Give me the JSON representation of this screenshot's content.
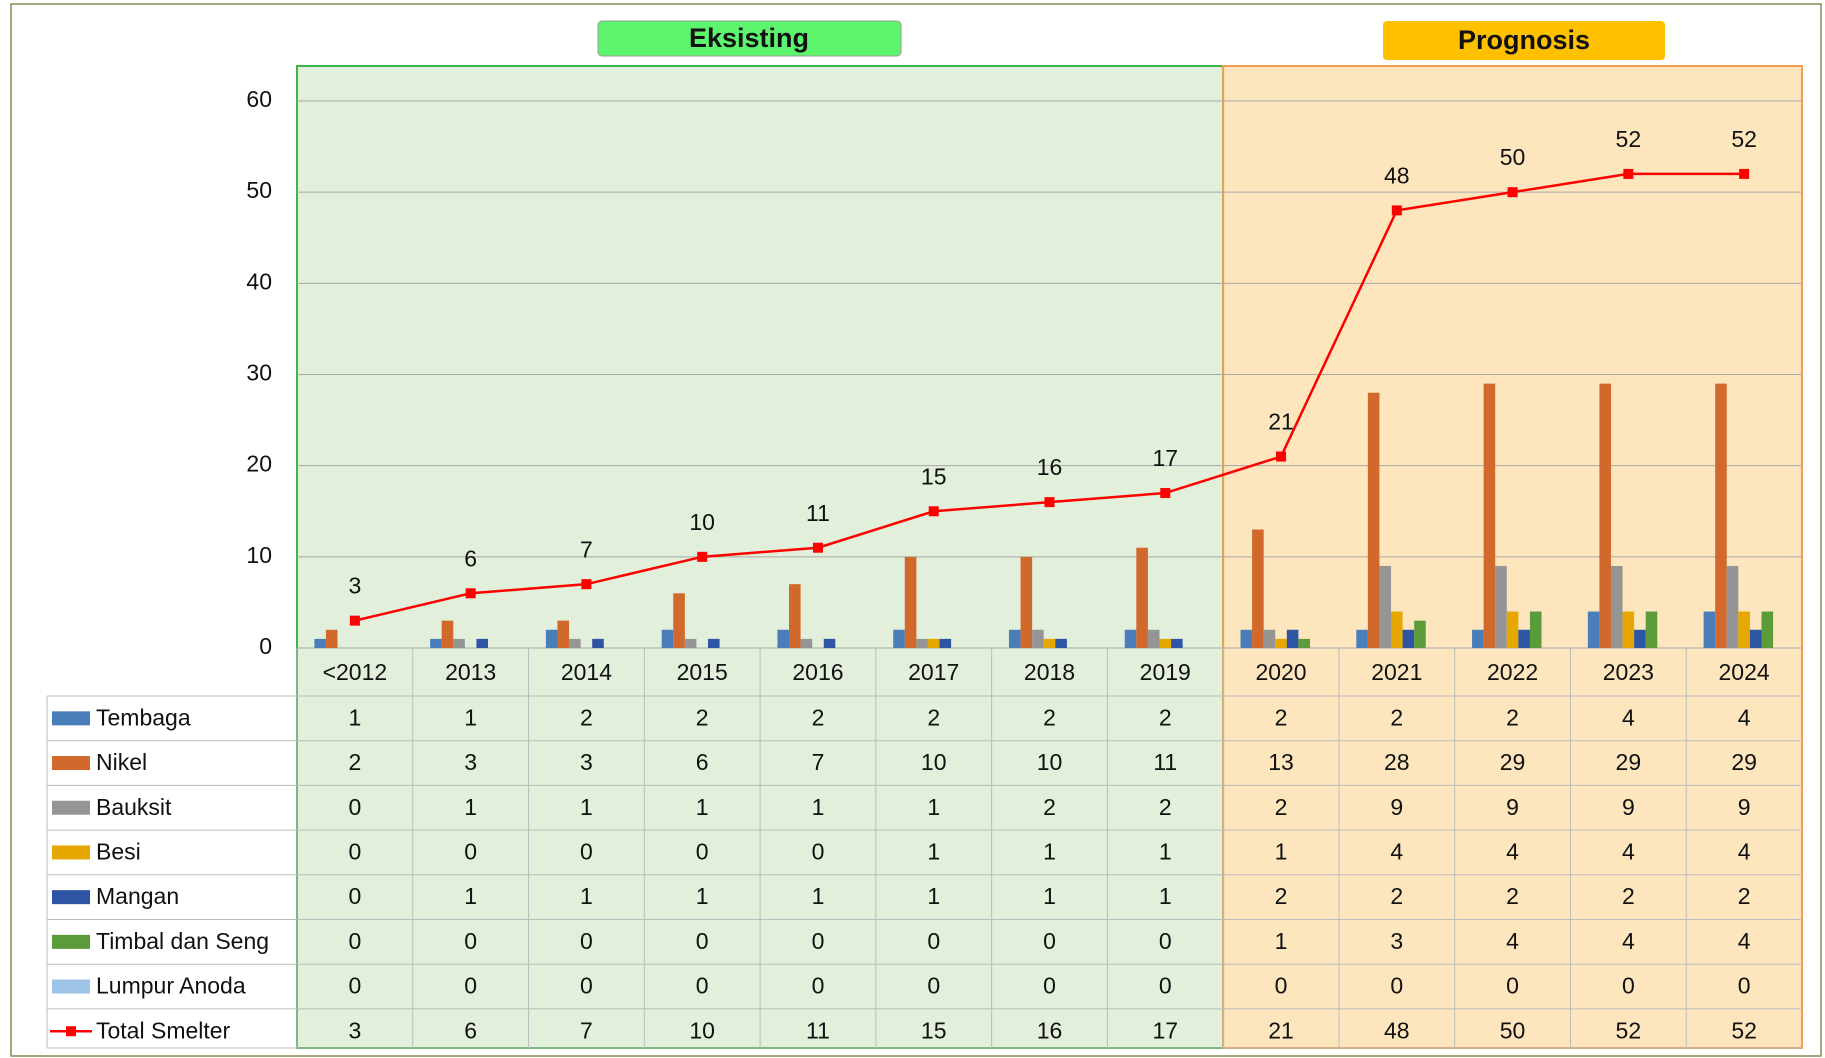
{
  "chart_data": {
    "type": "bar",
    "annotations": [
      "Eksisting",
      "Prognosis"
    ],
    "categories": [
      "<2012",
      "2013",
      "2014",
      "2015",
      "2016",
      "2017",
      "2018",
      "2019",
      "2020",
      "2021",
      "2022",
      "2023",
      "2024"
    ],
    "series": [
      {
        "name": "Tembaga",
        "color": "#4a7ebb",
        "values": [
          1,
          1,
          2,
          2,
          2,
          2,
          2,
          2,
          2,
          2,
          2,
          4,
          4
        ]
      },
      {
        "name": "Nikel",
        "color": "#d0692b",
        "values": [
          2,
          3,
          3,
          6,
          7,
          10,
          10,
          11,
          13,
          28,
          29,
          29,
          29
        ]
      },
      {
        "name": "Bauksit",
        "color": "#959595",
        "values": [
          0,
          1,
          1,
          1,
          1,
          1,
          2,
          2,
          2,
          9,
          9,
          9,
          9
        ]
      },
      {
        "name": "Besi",
        "color": "#e6a800",
        "values": [
          0,
          0,
          0,
          0,
          0,
          1,
          1,
          1,
          1,
          4,
          4,
          4,
          4
        ]
      },
      {
        "name": "Mangan",
        "color": "#2e54a4",
        "values": [
          0,
          1,
          1,
          1,
          1,
          1,
          1,
          1,
          2,
          2,
          2,
          2,
          2
        ]
      },
      {
        "name": "Timbal dan Seng",
        "color": "#5c9b3a",
        "values": [
          0,
          0,
          0,
          0,
          0,
          0,
          0,
          0,
          1,
          3,
          4,
          4,
          4
        ]
      },
      {
        "name": "Lumpur Anoda",
        "color": "#9dc3e6",
        "values": [
          0,
          0,
          0,
          0,
          0,
          0,
          0,
          0,
          0,
          0,
          0,
          0,
          0
        ]
      },
      {
        "name": "Total Smelter",
        "color": "#ff0000",
        "type": "line",
        "values": [
          3,
          6,
          7,
          10,
          11,
          15,
          16,
          17,
          21,
          48,
          50,
          52,
          52
        ]
      }
    ],
    "ylim": [
      0,
      60
    ],
    "yticks": [
      0,
      10,
      20,
      30,
      40,
      50,
      60
    ],
    "grid": true
  }
}
